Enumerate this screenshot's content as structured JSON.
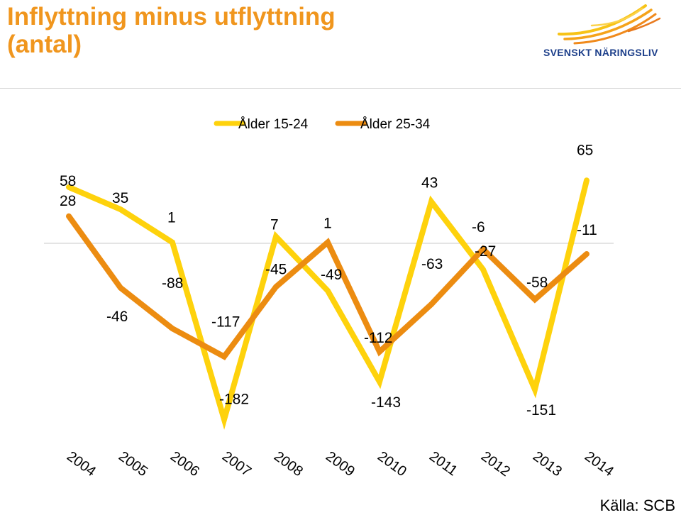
{
  "header": {
    "title_line1": "Inflyttning minus utflyttning",
    "title_line2": "(antal)"
  },
  "logo": {
    "text": "SVENSKT NÄRINGSLIV",
    "icon": "flame-wing-icon"
  },
  "source": "Källa: SCB",
  "colors": {
    "title": "#f0961e",
    "series_1": "#fed20c",
    "series_2": "#ec8c11",
    "logo_text": "#1d3f8a"
  },
  "chart_data": {
    "type": "line",
    "title": "Inflyttning minus utflyttning (antal)",
    "x": [
      "2004",
      "2005",
      "2006",
      "2007",
      "2008",
      "2009",
      "2010",
      "2011",
      "2012",
      "2013",
      "2014"
    ],
    "series": [
      {
        "name": "Ålder 15-24",
        "values": [
          58,
          35,
          1,
          -182,
          7,
          -49,
          -143,
          43,
          -27,
          -151,
          65
        ]
      },
      {
        "name": "Ålder 25-34",
        "values": [
          28,
          -46,
          -88,
          -117,
          -45,
          1,
          -112,
          -63,
          -6,
          -58,
          -11
        ]
      }
    ],
    "ylim": [
      -200,
      70
    ],
    "grid": false,
    "legend": "top-center",
    "xlabel": "",
    "ylabel": ""
  }
}
